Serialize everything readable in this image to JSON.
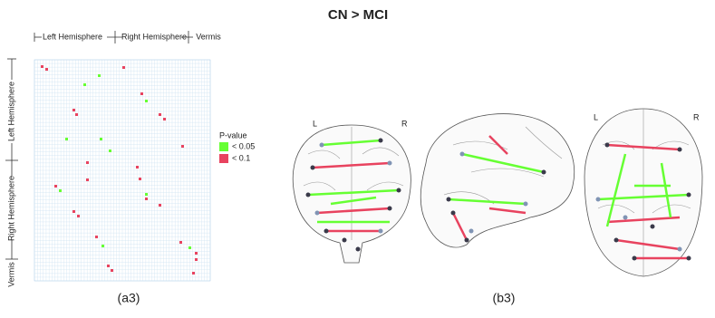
{
  "title": "CN > MCI",
  "matrix": {
    "top_labels": [
      "Left Hemisphere",
      "Right Hemisphere",
      "Vermis"
    ],
    "side_labels": [
      "Left Hemisphere",
      "Right Hemisphere",
      "Vermis"
    ],
    "legend": {
      "title": "P-value",
      "items": [
        {
          "label": "< 0.05",
          "color": "#66ff33"
        },
        {
          "label": "< 0.1",
          "color": "#e8435f"
        }
      ]
    },
    "caption": "(a3)"
  },
  "brain": {
    "coronal": {
      "left": "L",
      "right": "R"
    },
    "axial": {
      "left": "L",
      "right": "R"
    },
    "caption": "(b3)"
  }
}
